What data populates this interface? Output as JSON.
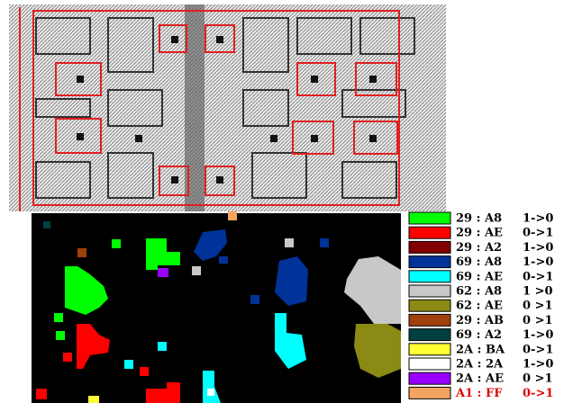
{
  "legend": {
    "entries": [
      {
        "label": "29 : A8",
        "transition": "1->0",
        "color": "#00ff00"
      },
      {
        "label": "29 : AE",
        "transition": "0->1",
        "color": "#ff0000"
      },
      {
        "label": "29 : A2",
        "transition": "1->0",
        "color": "#800000"
      },
      {
        "label": "69 : A8",
        "transition": "1->0",
        "color": "#003399"
      },
      {
        "label": "69 : AE",
        "transition": "0->1",
        "color": "#00ffff"
      },
      {
        "label": "62 : A8",
        "transition": "1 >0",
        "color": "#c8c8c8"
      },
      {
        "label": "62 : AE",
        "transition": "0 >1",
        "color": "#8a8a14"
      },
      {
        "label": "29 : AB",
        "transition": "0 >1",
        "color": "#a0400a"
      },
      {
        "label": "69 : A2",
        "transition": "1->0",
        "color": "#004040"
      },
      {
        "label": "2A : BA",
        "transition": "0->1",
        "color": "#ffff33"
      },
      {
        "label": "2A : 2A",
        "transition": "1->0",
        "color": "#ffffff"
      },
      {
        "label": "2A : AE",
        "transition": "0 >1",
        "color": "#9900ff"
      },
      {
        "label": "A1 : FF",
        "transition": "0->1",
        "color": "#f4a460",
        "text_color": "#e00000"
      }
    ]
  }
}
